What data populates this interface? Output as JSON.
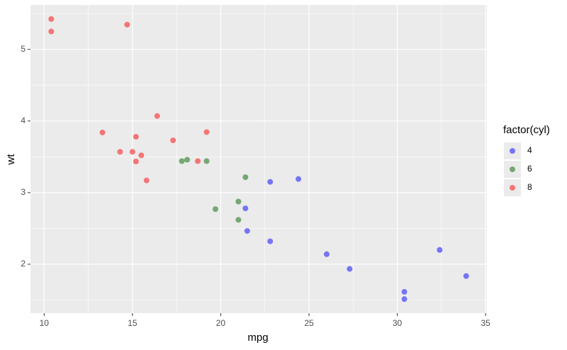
{
  "chart_data": {
    "type": "scatter",
    "x_label": "mpg",
    "y_label": "wt",
    "legend_title": "factor(cyl)",
    "legend_position": "right",
    "alpha": 0.5,
    "grid": true,
    "xlim": [
      9.225,
      35.075
    ],
    "xticks": [
      10,
      15,
      20,
      25,
      30,
      35
    ],
    "ylim": [
      1.317,
      5.62
    ],
    "yticks": [
      2,
      3,
      4,
      5
    ],
    "series": [
      {
        "name": "4",
        "color": "#0000ff",
        "x": [
          22.8,
          24.4,
          22.8,
          32.4,
          30.4,
          33.9,
          21.5,
          27.3,
          26.0,
          30.4,
          21.4
        ],
        "values": [
          2.32,
          3.19,
          3.15,
          2.2,
          1.615,
          1.835,
          2.465,
          1.935,
          2.14,
          1.513,
          2.78
        ]
      },
      {
        "name": "6",
        "color": "#006400",
        "x": [
          21.0,
          21.0,
          21.4,
          18.1,
          19.2,
          17.8,
          19.7
        ],
        "values": [
          2.62,
          2.875,
          3.215,
          3.46,
          3.44,
          3.44,
          2.77
        ]
      },
      {
        "name": "8",
        "color": "#ff0000",
        "x": [
          18.7,
          14.3,
          16.4,
          17.3,
          15.2,
          10.4,
          10.4,
          14.7,
          15.5,
          15.2,
          13.3,
          19.2,
          15.8,
          15.0
        ],
        "values": [
          3.44,
          3.57,
          4.07,
          3.73,
          3.78,
          5.25,
          5.424,
          5.345,
          3.52,
          3.435,
          3.84,
          3.845,
          3.17,
          3.57
        ]
      }
    ]
  }
}
